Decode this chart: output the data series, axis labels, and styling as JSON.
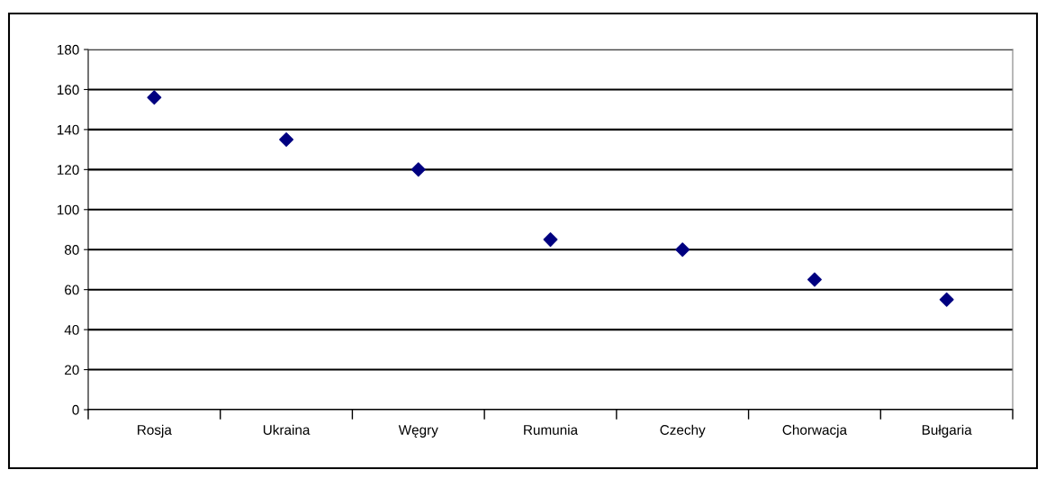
{
  "chart_data": {
    "type": "scatter",
    "categories": [
      "Rosja",
      "Ukraina",
      "Węgry",
      "Rumunia",
      "Czechy",
      "Chorwacja",
      "Bułgaria"
    ],
    "series": [
      {
        "color": "#000080",
        "values": [
          156,
          135,
          120,
          85,
          80,
          65,
          55
        ]
      }
    ],
    "ylim": [
      0,
      180
    ],
    "yticks": [
      0,
      20,
      40,
      60,
      80,
      100,
      120,
      140,
      160,
      180
    ],
    "grid": "y",
    "marker": "diamond",
    "legend": false
  }
}
